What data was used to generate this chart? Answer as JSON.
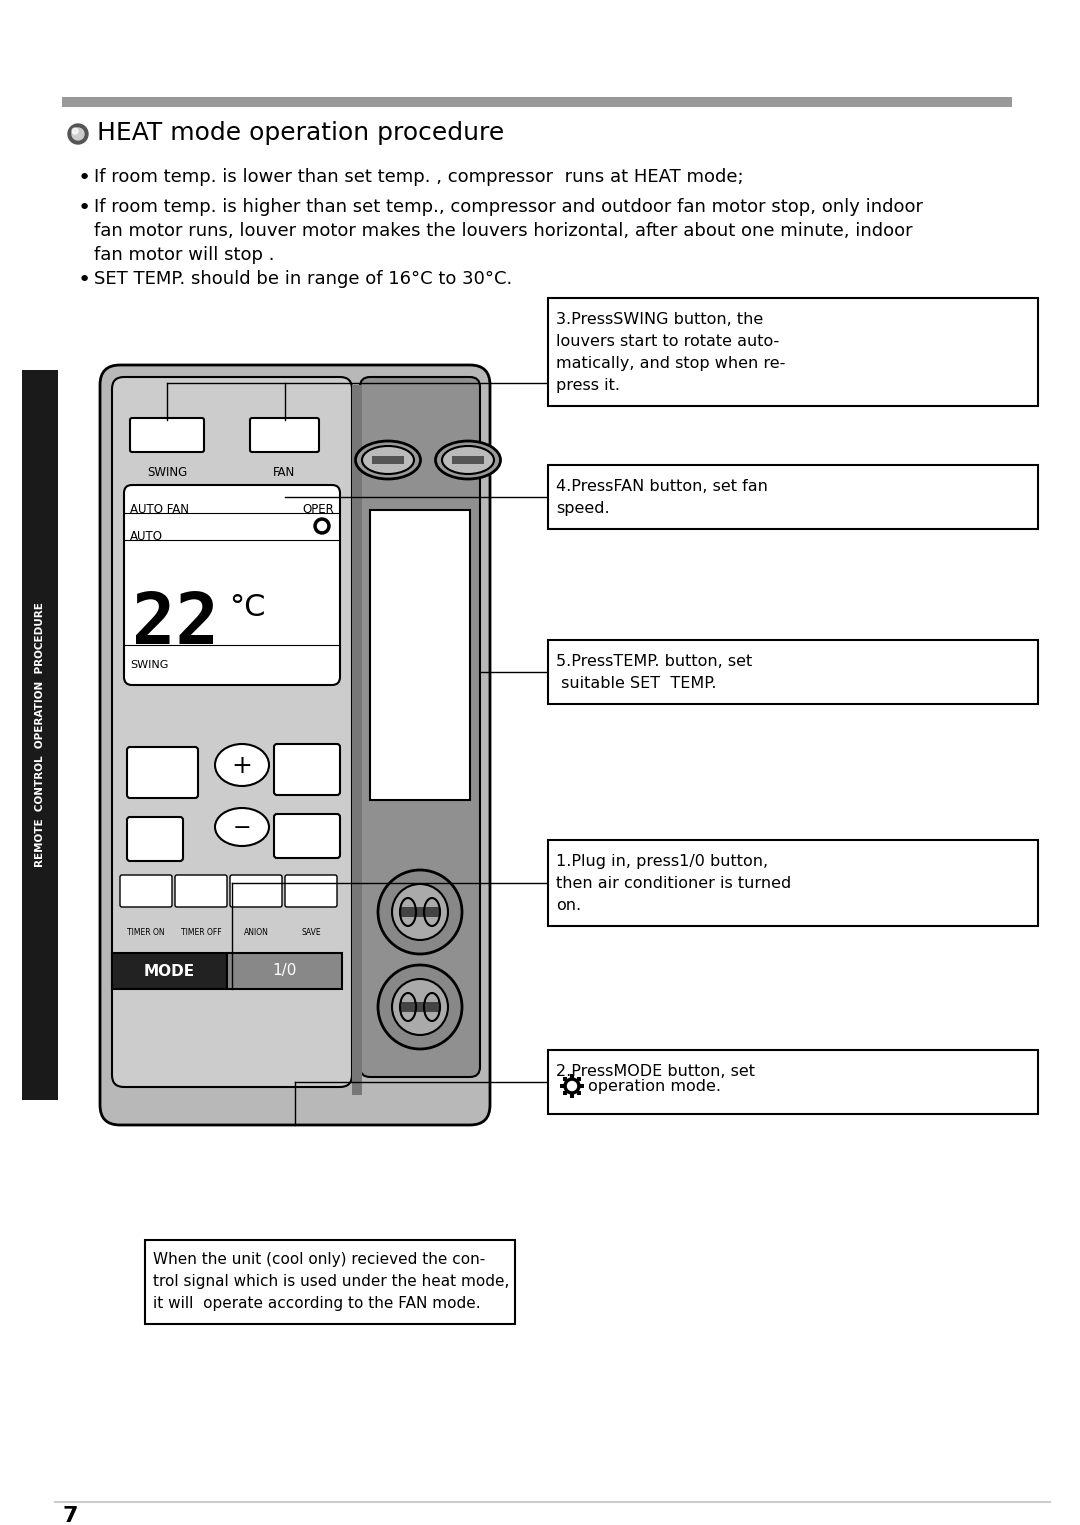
{
  "title": "HEAT mode operation procedure",
  "bullet1": "If room temp. is lower than set temp. , compressor  runs at HEAT mode;",
  "bullet2_line1": "If room temp. is higher than set temp., compressor and outdoor fan motor stop, only indoor",
  "bullet2_line2": "fan motor runs, louver motor makes the louvers horizontal, after about one minute, indoor",
  "bullet2_line3": "fan motor will stop .",
  "bullet3": "SET TEMP. should be in range of 16°C to 30°C.",
  "box1_text": "3.PressSWING button, the\nlouvers start to rotate auto-\nmatically, and stop when re-\npress it.",
  "box2_text": "4.PressFAN button, set fan\nspeed.",
  "box3_text": "5.PressTEMP. button, set\n suitable SET  TEMP.",
  "box4_text": "1.Plug in, press1/0 button,\nthen air conditioner is turned\non.",
  "box5_line1": "2.PressMODE button, set",
  "box5_line2": "    operation mode.",
  "bottom_note": "When the unit (cool only) recieved the con-\ntrol signal which is used under the heat mode,\nit will  operate according to the FAN mode.",
  "side_text": "REMOTE  CONTROL  OPERATION  PROCEDURE",
  "page_num": "7",
  "bg_color": "#ffffff",
  "sidebar_color": "#1a1a1a",
  "remote_body_color": "#b8b8b8",
  "remote_dark_color": "#909090",
  "remote_light_color": "#cccccc",
  "box_line_color": "#000000",
  "header_bar_color": "#999999"
}
